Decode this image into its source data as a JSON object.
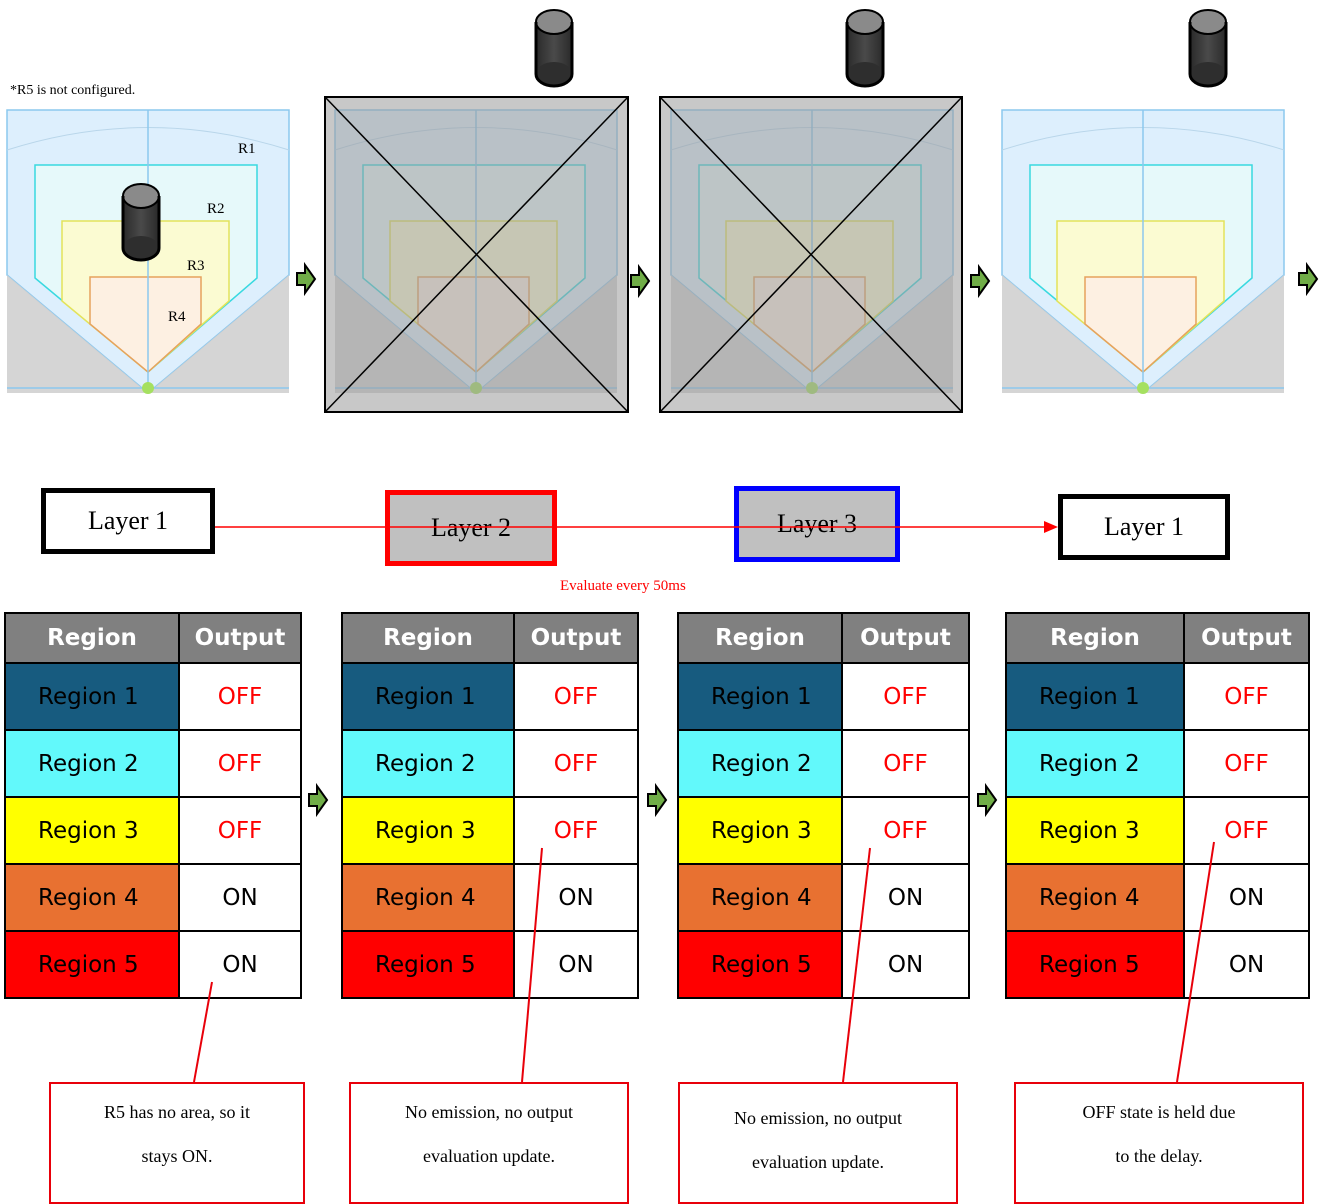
{
  "note": "*R5 is not configured.",
  "region_labels": [
    "R1",
    "R2",
    "R3",
    "R4"
  ],
  "layers": [
    "Layer 1",
    "Layer 2",
    "Layer 3",
    "Layer 1"
  ],
  "evaluate_label": "Evaluate every 50ms",
  "table_headers": {
    "region": "Region",
    "output": "Output"
  },
  "regions": [
    {
      "name": "Region 1",
      "bg": "#175b7f",
      "fg": "#000000"
    },
    {
      "name": "Region 2",
      "bg": "#62f9fb",
      "fg": "#000000"
    },
    {
      "name": "Region 3",
      "bg": "#ffff00",
      "fg": "#000000"
    },
    {
      "name": "Region 4",
      "bg": "#e87131",
      "fg": "#000000"
    },
    {
      "name": "Region 5",
      "bg": "#ff0000",
      "fg": "#000000"
    }
  ],
  "outputs": [
    "OFF",
    "OFF",
    "OFF",
    "ON",
    "ON"
  ],
  "colors": {
    "off": "#ff0000",
    "on": "#000000",
    "arrow": "#70ad47",
    "accent": "#ff0000"
  },
  "callouts": [
    [
      "R5 has no area, so it",
      "stays ON."
    ],
    [
      "No emission, no output",
      "evaluation update."
    ],
    [
      "No emission, no output",
      "evaluation update."
    ],
    [
      "OFF state is held due",
      "to the delay."
    ]
  ]
}
